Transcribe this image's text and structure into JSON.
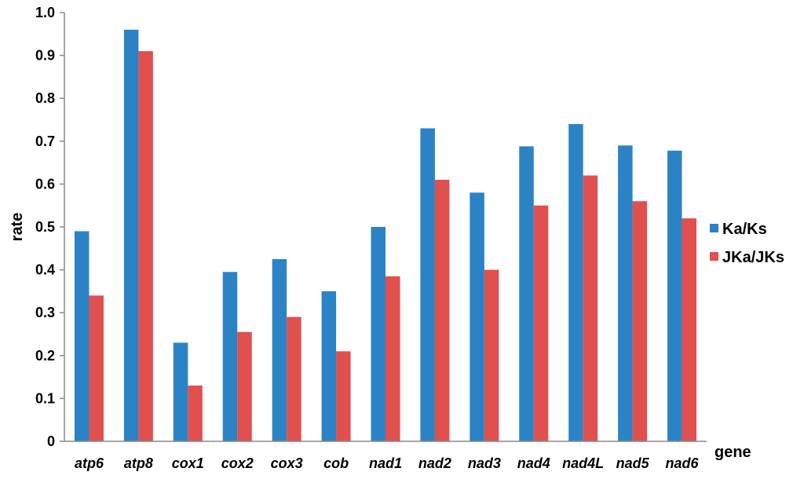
{
  "chart_data": {
    "type": "bar",
    "title": "",
    "xlabel": "gene",
    "ylabel": "rate",
    "ylim": [
      0,
      1.0
    ],
    "yticks": [
      "0",
      "0.1",
      "0.2",
      "0.3",
      "0.4",
      "0.5",
      "0.6",
      "0.7",
      "0.8",
      "0.9",
      "1.0"
    ],
    "categories": [
      "atp6",
      "atp8",
      "cox1",
      "cox2",
      "cox3",
      "cob",
      "nad1",
      "nad2",
      "nad3",
      "nad4",
      "nad4L",
      "nad5",
      "nad6"
    ],
    "series": [
      {
        "name": "Ka/Ks",
        "color": "#2b83c6",
        "values": [
          0.49,
          0.96,
          0.23,
          0.395,
          0.425,
          0.35,
          0.5,
          0.73,
          0.58,
          0.688,
          0.74,
          0.69,
          0.678
        ]
      },
      {
        "name": "JKa/JKs",
        "color": "#e0504e",
        "values": [
          0.34,
          0.91,
          0.13,
          0.255,
          0.29,
          0.21,
          0.385,
          0.61,
          0.4,
          0.55,
          0.62,
          0.56,
          0.52
        ]
      }
    ],
    "grid": false,
    "legend": "right"
  }
}
